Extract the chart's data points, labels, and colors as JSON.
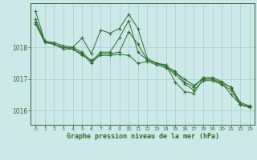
{
  "background_color": "#cce8e8",
  "plot_bg_color": "#cce8e8",
  "grid_color": "#aacccc",
  "line_color": "#2d6e2d",
  "xlabel": "Graphe pression niveau de la mer (hPa)",
  "ylim": [
    1015.55,
    1019.4
  ],
  "xlim": [
    -0.5,
    23.5
  ],
  "yticks": [
    1016,
    1017,
    1018
  ],
  "xticks": [
    0,
    1,
    2,
    3,
    4,
    5,
    6,
    7,
    8,
    9,
    10,
    11,
    12,
    13,
    14,
    15,
    16,
    17,
    18,
    19,
    20,
    21,
    22,
    23
  ],
  "series": [
    [
      1018.9,
      1018.2,
      1018.15,
      1018.05,
      1018.0,
      1017.85,
      1017.55,
      1017.85,
      1017.85,
      1018.3,
      1018.85,
      1017.85,
      1017.6,
      1017.5,
      1017.4,
      1017.25,
      1016.9,
      1016.75,
      1017.05,
      1017.05,
      1016.92,
      1016.72,
      1016.25,
      1016.15
    ],
    [
      1018.8,
      1018.2,
      1018.1,
      1018.0,
      1017.95,
      1017.8,
      1017.5,
      1017.8,
      1017.8,
      1017.85,
      1018.5,
      1018.1,
      1017.6,
      1017.5,
      1017.4,
      1017.2,
      1017.0,
      1016.8,
      1017.0,
      1017.0,
      1016.88,
      1016.5,
      1016.2,
      1016.12
    ],
    [
      1018.75,
      1018.15,
      1018.1,
      1017.95,
      1017.95,
      1017.75,
      1017.6,
      1017.75,
      1017.75,
      1017.78,
      1017.75,
      1017.5,
      1017.55,
      1017.45,
      1017.35,
      1017.15,
      1016.85,
      1016.65,
      1016.95,
      1016.95,
      1016.82,
      1016.65,
      1016.18,
      1016.1
    ],
    [
      1019.15,
      1018.2,
      1018.1,
      1018.0,
      1018.0,
      1018.3,
      1017.8,
      1018.55,
      1018.45,
      1018.6,
      1019.05,
      1018.6,
      1017.65,
      1017.5,
      1017.45,
      1016.9,
      1016.6,
      1016.55,
      1017.0,
      1017.0,
      1016.85,
      1016.75,
      1016.2,
      1016.1
    ]
  ]
}
